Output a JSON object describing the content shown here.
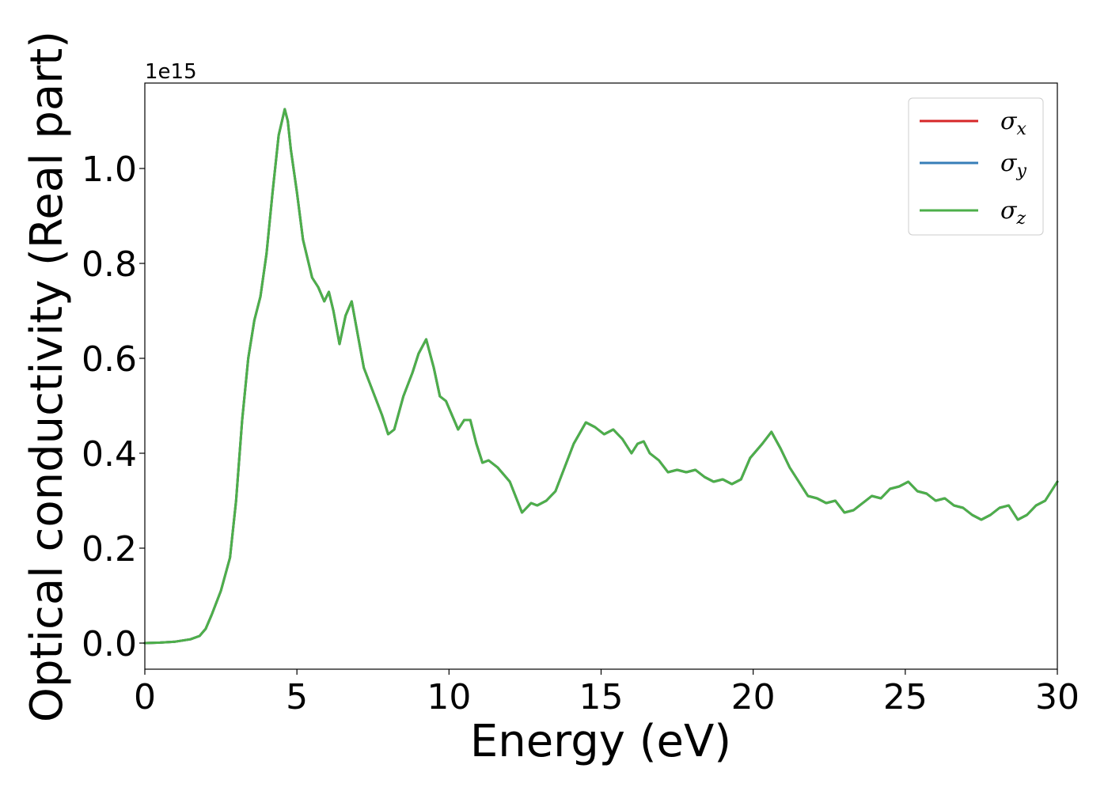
{
  "chart_data": {
    "type": "line",
    "xlabel": "Energy (eV)",
    "ylabel": "Optical conductivity (Real part)",
    "y_offset_label": "1e15",
    "xlim": [
      0,
      30
    ],
    "ylim": [
      -0.055,
      1.18
    ],
    "xticks": [
      0,
      5,
      10,
      15,
      20,
      25,
      30
    ],
    "xtick_labels": [
      "0",
      "5",
      "10",
      "15",
      "20",
      "25",
      "30"
    ],
    "yticks": [
      0.0,
      0.2,
      0.4,
      0.6,
      0.8,
      1.0
    ],
    "ytick_labels": [
      "0.0",
      "0.2",
      "0.4",
      "0.6",
      "0.8",
      "1.0"
    ],
    "grid": false,
    "legend_position": "top-right",
    "series": [
      {
        "name": "σx",
        "symbol": "σ",
        "subscript": "x",
        "color": "#d62728",
        "x": [
          0,
          0.5,
          1,
          1.5,
          1.8,
          2,
          2.2,
          2.5,
          2.8,
          3,
          3.2,
          3.4,
          3.6,
          3.8,
          4,
          4.2,
          4.4,
          4.6,
          4.7,
          4.8,
          5,
          5.2,
          5.5,
          5.7,
          5.9,
          6.05,
          6.2,
          6.4,
          6.6,
          6.8,
          7,
          7.2,
          7.5,
          7.8,
          8,
          8.2,
          8.5,
          8.8,
          9,
          9.25,
          9.5,
          9.7,
          9.9,
          10.1,
          10.3,
          10.5,
          10.7,
          10.9,
          11.1,
          11.3,
          11.6,
          12,
          12.4,
          12.7,
          12.9,
          13.2,
          13.5,
          13.8,
          14.1,
          14.5,
          14.8,
          15.1,
          15.4,
          15.7,
          16,
          16.2,
          16.4,
          16.6,
          16.9,
          17.2,
          17.5,
          17.8,
          18.1,
          18.4,
          18.7,
          19,
          19.3,
          19.6,
          19.9,
          20.3,
          20.6,
          20.9,
          21.2,
          21.5,
          21.8,
          22.1,
          22.4,
          22.7,
          23,
          23.3,
          23.6,
          23.9,
          24.2,
          24.5,
          24.8,
          25.1,
          25.4,
          25.7,
          26,
          26.3,
          26.6,
          26.9,
          27.2,
          27.5,
          27.8,
          28.1,
          28.4,
          28.7,
          29,
          29.3,
          29.6,
          30
        ],
        "y": [
          0.0,
          0.001,
          0.003,
          0.008,
          0.015,
          0.03,
          0.06,
          0.11,
          0.18,
          0.3,
          0.47,
          0.6,
          0.68,
          0.73,
          0.82,
          0.95,
          1.07,
          1.125,
          1.1,
          1.04,
          0.95,
          0.85,
          0.77,
          0.75,
          0.72,
          0.74,
          0.7,
          0.63,
          0.69,
          0.72,
          0.65,
          0.58,
          0.53,
          0.48,
          0.44,
          0.45,
          0.52,
          0.57,
          0.61,
          0.64,
          0.58,
          0.52,
          0.51,
          0.48,
          0.45,
          0.47,
          0.47,
          0.42,
          0.38,
          0.385,
          0.37,
          0.34,
          0.275,
          0.295,
          0.29,
          0.3,
          0.32,
          0.37,
          0.42,
          0.465,
          0.455,
          0.44,
          0.45,
          0.43,
          0.4,
          0.42,
          0.425,
          0.4,
          0.385,
          0.36,
          0.365,
          0.36,
          0.365,
          0.35,
          0.34,
          0.345,
          0.335,
          0.345,
          0.39,
          0.42,
          0.445,
          0.41,
          0.37,
          0.34,
          0.31,
          0.305,
          0.295,
          0.3,
          0.275,
          0.28,
          0.295,
          0.31,
          0.305,
          0.325,
          0.33,
          0.34,
          0.32,
          0.315,
          0.3,
          0.305,
          0.29,
          0.285,
          0.27,
          0.26,
          0.27,
          0.285,
          0.29,
          0.26,
          0.27,
          0.29,
          0.3,
          0.34
        ]
      },
      {
        "name": "σy",
        "symbol": "σ",
        "subscript": "y",
        "color": "#377eb8",
        "x": [
          0,
          0.5,
          1,
          1.5,
          1.8,
          2,
          2.2,
          2.5,
          2.8,
          3,
          3.2,
          3.4,
          3.6,
          3.8,
          4,
          4.2,
          4.4,
          4.6,
          4.7,
          4.8,
          5,
          5.2,
          5.5,
          5.7,
          5.9,
          6.05,
          6.2,
          6.4,
          6.6,
          6.8,
          7,
          7.2,
          7.5,
          7.8,
          8,
          8.2,
          8.5,
          8.8,
          9,
          9.25,
          9.5,
          9.7,
          9.9,
          10.1,
          10.3,
          10.5,
          10.7,
          10.9,
          11.1,
          11.3,
          11.6,
          12,
          12.4,
          12.7,
          12.9,
          13.2,
          13.5,
          13.8,
          14.1,
          14.5,
          14.8,
          15.1,
          15.4,
          15.7,
          16,
          16.2,
          16.4,
          16.6,
          16.9,
          17.2,
          17.5,
          17.8,
          18.1,
          18.4,
          18.7,
          19,
          19.3,
          19.6,
          19.9,
          20.3,
          20.6,
          20.9,
          21.2,
          21.5,
          21.8,
          22.1,
          22.4,
          22.7,
          23,
          23.3,
          23.6,
          23.9,
          24.2,
          24.5,
          24.8,
          25.1,
          25.4,
          25.7,
          26,
          26.3,
          26.6,
          26.9,
          27.2,
          27.5,
          27.8,
          28.1,
          28.4,
          28.7,
          29,
          29.3,
          29.6,
          30
        ],
        "y": [
          0.0,
          0.001,
          0.003,
          0.008,
          0.015,
          0.03,
          0.06,
          0.11,
          0.18,
          0.3,
          0.47,
          0.6,
          0.68,
          0.73,
          0.82,
          0.95,
          1.07,
          1.125,
          1.1,
          1.04,
          0.95,
          0.85,
          0.77,
          0.75,
          0.72,
          0.74,
          0.7,
          0.63,
          0.69,
          0.72,
          0.65,
          0.58,
          0.53,
          0.48,
          0.44,
          0.45,
          0.52,
          0.57,
          0.61,
          0.64,
          0.58,
          0.52,
          0.51,
          0.48,
          0.45,
          0.47,
          0.47,
          0.42,
          0.38,
          0.385,
          0.37,
          0.34,
          0.275,
          0.295,
          0.29,
          0.3,
          0.32,
          0.37,
          0.42,
          0.465,
          0.455,
          0.44,
          0.45,
          0.43,
          0.4,
          0.42,
          0.425,
          0.4,
          0.385,
          0.36,
          0.365,
          0.36,
          0.365,
          0.35,
          0.34,
          0.345,
          0.335,
          0.345,
          0.39,
          0.42,
          0.445,
          0.41,
          0.37,
          0.34,
          0.31,
          0.305,
          0.295,
          0.3,
          0.275,
          0.28,
          0.295,
          0.31,
          0.305,
          0.325,
          0.33,
          0.34,
          0.32,
          0.315,
          0.3,
          0.305,
          0.29,
          0.285,
          0.27,
          0.26,
          0.27,
          0.285,
          0.29,
          0.26,
          0.27,
          0.29,
          0.3,
          0.34
        ]
      },
      {
        "name": "σz",
        "symbol": "σ",
        "subscript": "z",
        "color": "#4daf4a",
        "x": [
          0,
          0.5,
          1,
          1.5,
          1.8,
          2,
          2.2,
          2.5,
          2.8,
          3,
          3.2,
          3.4,
          3.6,
          3.8,
          4,
          4.2,
          4.4,
          4.6,
          4.7,
          4.8,
          5,
          5.2,
          5.5,
          5.7,
          5.9,
          6.05,
          6.2,
          6.4,
          6.6,
          6.8,
          7,
          7.2,
          7.5,
          7.8,
          8,
          8.2,
          8.5,
          8.8,
          9,
          9.25,
          9.5,
          9.7,
          9.9,
          10.1,
          10.3,
          10.5,
          10.7,
          10.9,
          11.1,
          11.3,
          11.6,
          12,
          12.4,
          12.7,
          12.9,
          13.2,
          13.5,
          13.8,
          14.1,
          14.5,
          14.8,
          15.1,
          15.4,
          15.7,
          16,
          16.2,
          16.4,
          16.6,
          16.9,
          17.2,
          17.5,
          17.8,
          18.1,
          18.4,
          18.7,
          19,
          19.3,
          19.6,
          19.9,
          20.3,
          20.6,
          20.9,
          21.2,
          21.5,
          21.8,
          22.1,
          22.4,
          22.7,
          23,
          23.3,
          23.6,
          23.9,
          24.2,
          24.5,
          24.8,
          25.1,
          25.4,
          25.7,
          26,
          26.3,
          26.6,
          26.9,
          27.2,
          27.5,
          27.8,
          28.1,
          28.4,
          28.7,
          29,
          29.3,
          29.6,
          30
        ],
        "y": [
          0.0,
          0.001,
          0.003,
          0.008,
          0.015,
          0.03,
          0.06,
          0.11,
          0.18,
          0.3,
          0.47,
          0.6,
          0.68,
          0.73,
          0.82,
          0.95,
          1.07,
          1.125,
          1.1,
          1.04,
          0.95,
          0.85,
          0.77,
          0.75,
          0.72,
          0.74,
          0.7,
          0.63,
          0.69,
          0.72,
          0.65,
          0.58,
          0.53,
          0.48,
          0.44,
          0.45,
          0.52,
          0.57,
          0.61,
          0.64,
          0.58,
          0.52,
          0.51,
          0.48,
          0.45,
          0.47,
          0.47,
          0.42,
          0.38,
          0.385,
          0.37,
          0.34,
          0.275,
          0.295,
          0.29,
          0.3,
          0.32,
          0.37,
          0.42,
          0.465,
          0.455,
          0.44,
          0.45,
          0.43,
          0.4,
          0.42,
          0.425,
          0.4,
          0.385,
          0.36,
          0.365,
          0.36,
          0.365,
          0.35,
          0.34,
          0.345,
          0.335,
          0.345,
          0.39,
          0.42,
          0.445,
          0.41,
          0.37,
          0.34,
          0.31,
          0.305,
          0.295,
          0.3,
          0.275,
          0.28,
          0.295,
          0.31,
          0.305,
          0.325,
          0.33,
          0.34,
          0.32,
          0.315,
          0.3,
          0.305,
          0.29,
          0.285,
          0.27,
          0.26,
          0.27,
          0.285,
          0.29,
          0.26,
          0.27,
          0.29,
          0.3,
          0.34
        ]
      }
    ]
  }
}
